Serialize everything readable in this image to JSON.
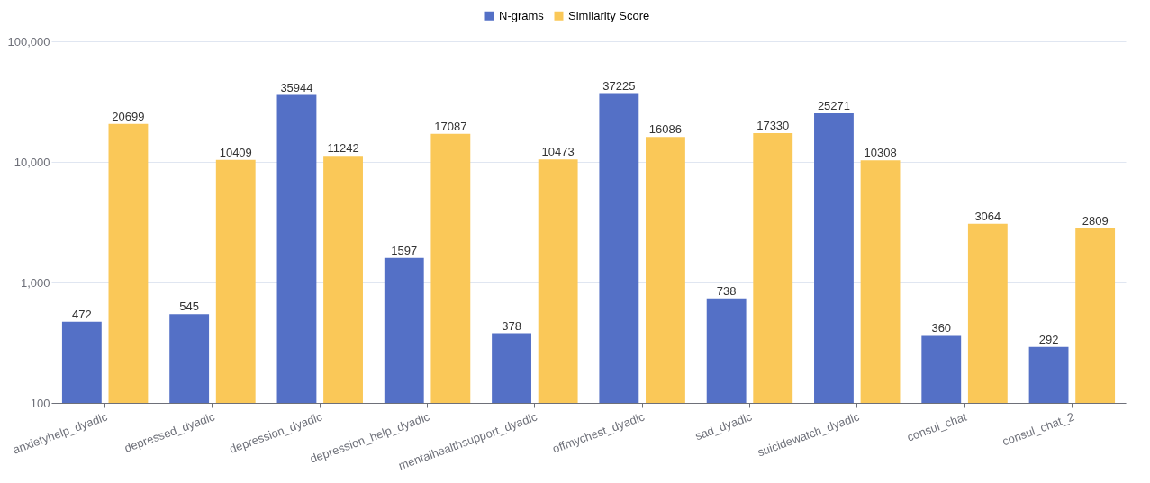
{
  "chart_data": {
    "type": "bar",
    "categories": [
      "anxietyhelp_dyadic",
      "depressed_dyadic",
      "depression_dyadic",
      "depression_help_dyadic",
      "mentalhealthsupport_dyadic",
      "offmychest_dyadic",
      "sad_dyadic",
      "suicidewatch_dyadic",
      "consul_chat",
      "consul_chat_2"
    ],
    "series": [
      {
        "name": "N-grams",
        "color": "#5470c6",
        "values": [
          472,
          545,
          35944,
          1597,
          378,
          37225,
          738,
          25271,
          360,
          292
        ]
      },
      {
        "name": "Similarity Score",
        "color": "#fac858",
        "values": [
          20699,
          10409,
          11242,
          17087,
          10473,
          16086,
          17330,
          10308,
          3064,
          2809
        ]
      }
    ],
    "log": "y",
    "ylim": [
      100,
      100000
    ],
    "yticks": [
      {
        "value": 100,
        "label": "100"
      },
      {
        "value": 1000,
        "label": "1,000"
      },
      {
        "value": 10000,
        "label": "10,000"
      },
      {
        "value": 100000,
        "label": "100,000"
      }
    ],
    "grid": "y",
    "legend": "top",
    "data_labels": true
  }
}
